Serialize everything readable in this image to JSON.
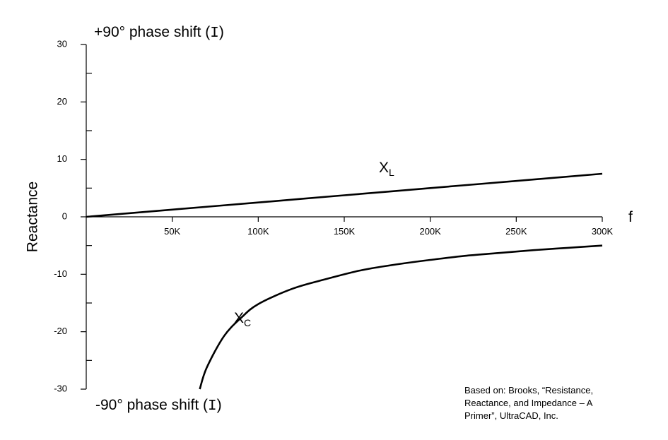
{
  "chart_data": {
    "type": "line",
    "xlabel": "f",
    "ylabel": "Reactance",
    "xlim": [
      0,
      300000
    ],
    "ylim": [
      -30,
      30
    ],
    "x_ticks": [
      50000,
      100000,
      150000,
      200000,
      250000,
      300000
    ],
    "x_tick_labels": [
      "50K",
      "100K",
      "150K",
      "200K",
      "250K",
      "300K"
    ],
    "y_ticks": [
      -30,
      -20,
      -10,
      0,
      10,
      20,
      30
    ],
    "y_tick_labels": [
      "-30",
      "-20",
      "-10",
      "0",
      "10",
      "20",
      "30"
    ],
    "y_minor_ticks": [
      -25,
      -15,
      -5,
      5,
      15,
      25
    ],
    "grid": false,
    "annotations": {
      "top": {
        "prefix": "+90° phase shift (",
        "mono": "I",
        "suffix": ")"
      },
      "bottom": {
        "prefix": "-90° phase shift (",
        "mono": "I",
        "suffix": ")"
      }
    },
    "series": [
      {
        "name": "XL",
        "label_main": "X",
        "label_sub": "L",
        "x": [
          0,
          50000,
          100000,
          150000,
          200000,
          250000,
          300000
        ],
        "y": [
          0,
          1.25,
          2.5,
          3.75,
          5.0,
          6.25,
          7.5
        ]
      },
      {
        "name": "XC",
        "label_main": "X",
        "label_sub": "C",
        "x": [
          66000,
          70000,
          80000,
          90000,
          100000,
          120000,
          140000,
          160000,
          180000,
          200000,
          220000,
          240000,
          260000,
          280000,
          300000
        ],
        "y": [
          -30,
          -26.3,
          -20.8,
          -17.6,
          -15.2,
          -12.5,
          -10.8,
          -9.3,
          -8.3,
          -7.5,
          -6.8,
          -6.3,
          -5.8,
          -5.4,
          -5.0
        ]
      }
    ]
  },
  "credit": {
    "line1": "Based on: Brooks, “Resistance,",
    "line2": "Reactance, and Impedance – A",
    "line3": "Primer”, UltraCAD, Inc."
  }
}
